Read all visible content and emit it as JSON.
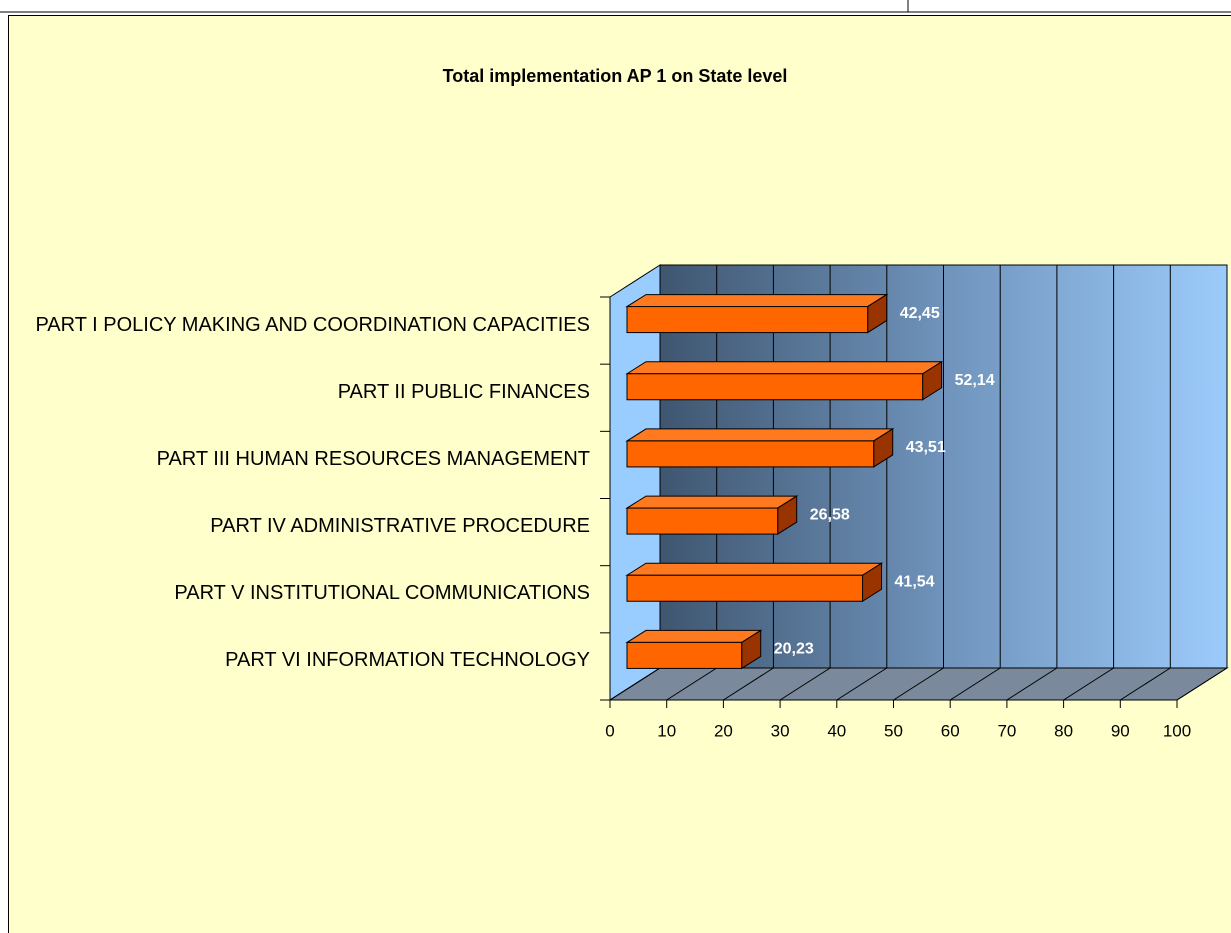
{
  "chart_data": {
    "type": "bar",
    "orientation": "horizontal",
    "three_d": true,
    "title": "Total implementation AP 1 on State level",
    "categories": [
      "PART I POLICY MAKING AND COORDINATION CAPACITIES",
      "PART II PUBLIC FINANCES",
      "PART III HUMAN RESOURCES MANAGEMENT",
      "PART IV ADMINISTRATIVE PROCEDURE",
      "PART V INSTITUTIONAL COMMUNICATIONS",
      "PART VI INFORMATION TECHNOLOGY"
    ],
    "values": [
      42.45,
      52.14,
      43.51,
      26.58,
      41.54,
      20.23
    ],
    "value_labels": [
      "42,45",
      "52,14",
      "43,51",
      "26,58",
      "41,54",
      "20,23"
    ],
    "color": "#ff6600",
    "xlim": [
      0,
      100
    ],
    "xticks": [
      0,
      10,
      20,
      30,
      40,
      50,
      60,
      70,
      80,
      90,
      100
    ],
    "grid": true
  }
}
